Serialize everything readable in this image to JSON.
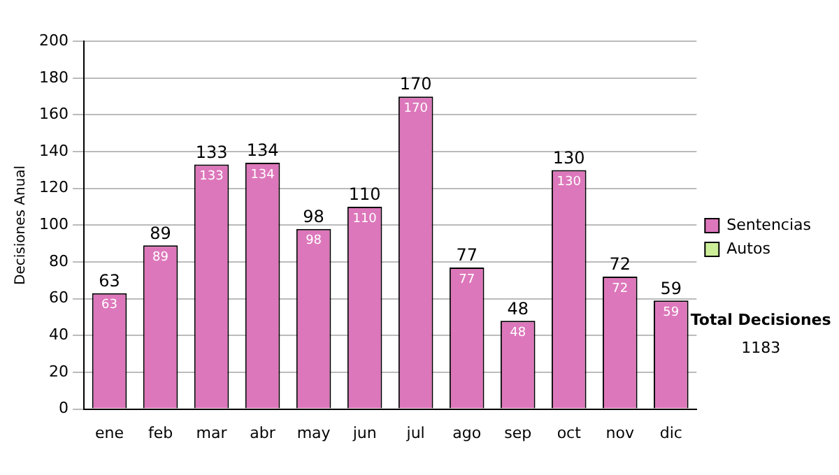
{
  "chart_data": {
    "type": "bar",
    "ylabel": "Decisiones Anual",
    "categories": [
      "ene",
      "feb",
      "mar",
      "abr",
      "may",
      "jun",
      "jul",
      "ago",
      "sep",
      "oct",
      "nov",
      "dic"
    ],
    "series": [
      {
        "name": "Sentencias",
        "color": "#dd77bb",
        "values": [
          63,
          89,
          133,
          134,
          98,
          110,
          170,
          77,
          48,
          130,
          72,
          59
        ],
        "value_labels": [
          "63",
          "89",
          "133",
          "134",
          "98",
          "110",
          "170",
          "77",
          "48",
          "130",
          "72",
          "59"
        ]
      },
      {
        "name": "Autos",
        "color": "#ccee99",
        "values": [
          0,
          0,
          0,
          0,
          0,
          0,
          0,
          0,
          0,
          0,
          0,
          0
        ]
      }
    ],
    "stacked": true,
    "totals": [
      "63",
      "89",
      "133",
      "134",
      "98",
      "110",
      "170",
      "77",
      "48",
      "130",
      "72",
      "59"
    ],
    "ylim": [
      0,
      200
    ],
    "yticks": [
      0,
      20,
      40,
      60,
      80,
      100,
      120,
      140,
      160,
      180,
      200
    ],
    "grid": "y",
    "legend": "right",
    "annotations": [
      "Total Decisiones",
      "1183"
    ]
  }
}
